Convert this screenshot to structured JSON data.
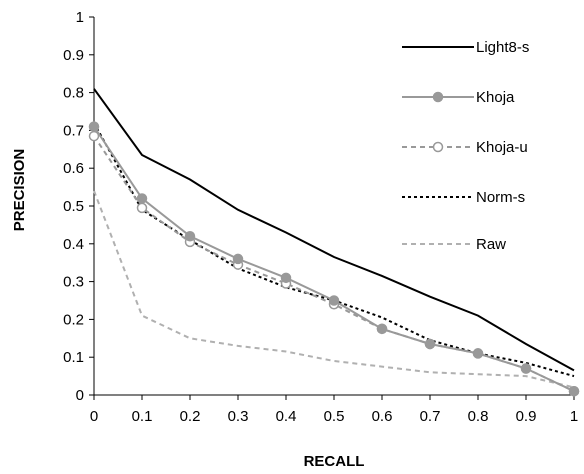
{
  "chart_data": {
    "type": "line",
    "xlabel": "RECALL",
    "ylabel": "PRECISION",
    "xlim": [
      0,
      1
    ],
    "ylim": [
      0,
      1
    ],
    "x_ticks": [
      "0",
      "0.1",
      "0.2",
      "0.3",
      "0.4",
      "0.5",
      "0.6",
      "0.7",
      "0.8",
      "0.9",
      "1"
    ],
    "y_ticks": [
      "0",
      "0.1",
      "0.2",
      "0.3",
      "0.4",
      "0.5",
      "0.6",
      "0.7",
      "0.8",
      "0.9",
      "1"
    ],
    "grid": false,
    "legend_position": "top-right",
    "x": [
      0,
      0.1,
      0.2,
      0.3,
      0.4,
      0.5,
      0.6,
      0.7,
      0.8,
      0.9,
      1
    ],
    "series": [
      {
        "name": "Light8-s",
        "color": "#000000",
        "style": "solid",
        "marker": "none",
        "values": [
          0.81,
          0.635,
          0.57,
          0.49,
          0.43,
          0.365,
          0.315,
          0.26,
          0.21,
          0.135,
          0.065
        ]
      },
      {
        "name": "Khoja",
        "color": "#999999",
        "style": "solid",
        "marker": "filled-circle",
        "values": [
          0.71,
          0.52,
          0.42,
          0.36,
          0.31,
          0.25,
          0.175,
          0.135,
          0.11,
          0.07,
          0.01
        ]
      },
      {
        "name": "Khoja-u",
        "color": "#999999",
        "style": "dashed",
        "marker": "open-circle",
        "values": [
          0.685,
          0.495,
          0.405,
          0.345,
          0.295,
          0.24,
          0.175,
          0.135,
          0.11,
          0.07,
          0.01
        ]
      },
      {
        "name": "Norm-s",
        "color": "#000000",
        "style": "dotted",
        "marker": "none",
        "values": [
          0.72,
          0.49,
          0.41,
          0.335,
          0.285,
          0.25,
          0.205,
          0.145,
          0.11,
          0.085,
          0.05
        ]
      },
      {
        "name": "Raw",
        "color": "#b0b0b0",
        "style": "dashed",
        "marker": "none",
        "values": [
          0.54,
          0.21,
          0.15,
          0.13,
          0.115,
          0.09,
          0.075,
          0.06,
          0.055,
          0.05,
          0.02
        ]
      }
    ]
  }
}
